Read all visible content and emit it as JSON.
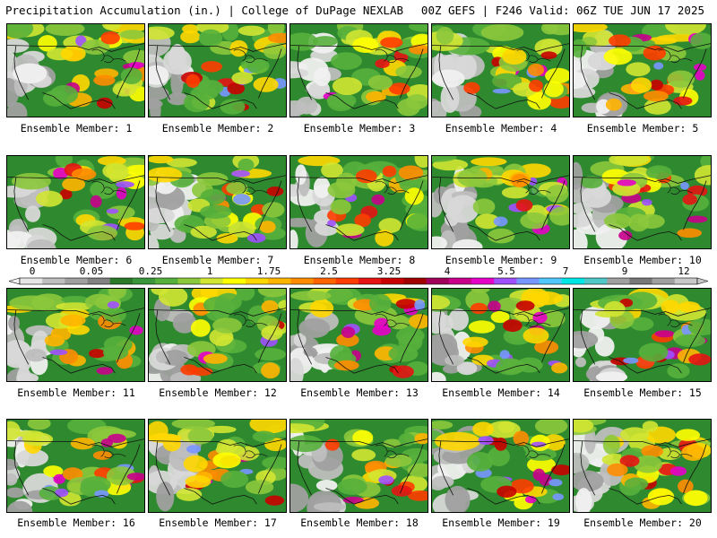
{
  "header": {
    "title": "Precipitation Accumulation (in.) | College of DuPage NEXLAB",
    "run_info": "00Z GEFS | F246 Valid: 06Z TUE JUN 17 2025"
  },
  "colorbar": {
    "labels": [
      "0",
      "0.05",
      "0.25",
      "1",
      "1.75",
      "2.5",
      "3.25",
      "4",
      "5.5",
      "7",
      "9",
      "12"
    ],
    "colors": [
      "#e6e6e6",
      "#bebebe",
      "#a0a0a0",
      "#828282",
      "#2a7a2a",
      "#3a963a",
      "#56b03c",
      "#8cc83c",
      "#d2e632",
      "#ffff00",
      "#ffd700",
      "#ffb400",
      "#ff8c00",
      "#ff6400",
      "#ff3c00",
      "#e61414",
      "#c80000",
      "#a00000",
      "#a0005a",
      "#c8008c",
      "#e600c8",
      "#a050ff",
      "#7896ff",
      "#50c8ff",
      "#00e6e6",
      "#50c8c8",
      "#a0a0a0",
      "#787878",
      "#a0a0a0",
      "#c8c8c8"
    ]
  },
  "members": [
    {
      "label": "Ensemble Member: 1"
    },
    {
      "label": "Ensemble Member: 2"
    },
    {
      "label": "Ensemble Member: 3"
    },
    {
      "label": "Ensemble Member: 4"
    },
    {
      "label": "Ensemble Member: 5"
    },
    {
      "label": "Ensemble Member: 6"
    },
    {
      "label": "Ensemble Member: 7"
    },
    {
      "label": "Ensemble Member: 8"
    },
    {
      "label": "Ensemble Member: 9"
    },
    {
      "label": "Ensemble Member: 10"
    },
    {
      "label": "Ensemble Member: 11"
    },
    {
      "label": "Ensemble Member: 12"
    },
    {
      "label": "Ensemble Member: 13"
    },
    {
      "label": "Ensemble Member: 14"
    },
    {
      "label": "Ensemble Member: 15"
    },
    {
      "label": "Ensemble Member: 16"
    },
    {
      "label": "Ensemble Member: 17"
    },
    {
      "label": "Ensemble Member: 18"
    },
    {
      "label": "Ensemble Member: 19"
    },
    {
      "label": "Ensemble Member: 20"
    }
  ]
}
